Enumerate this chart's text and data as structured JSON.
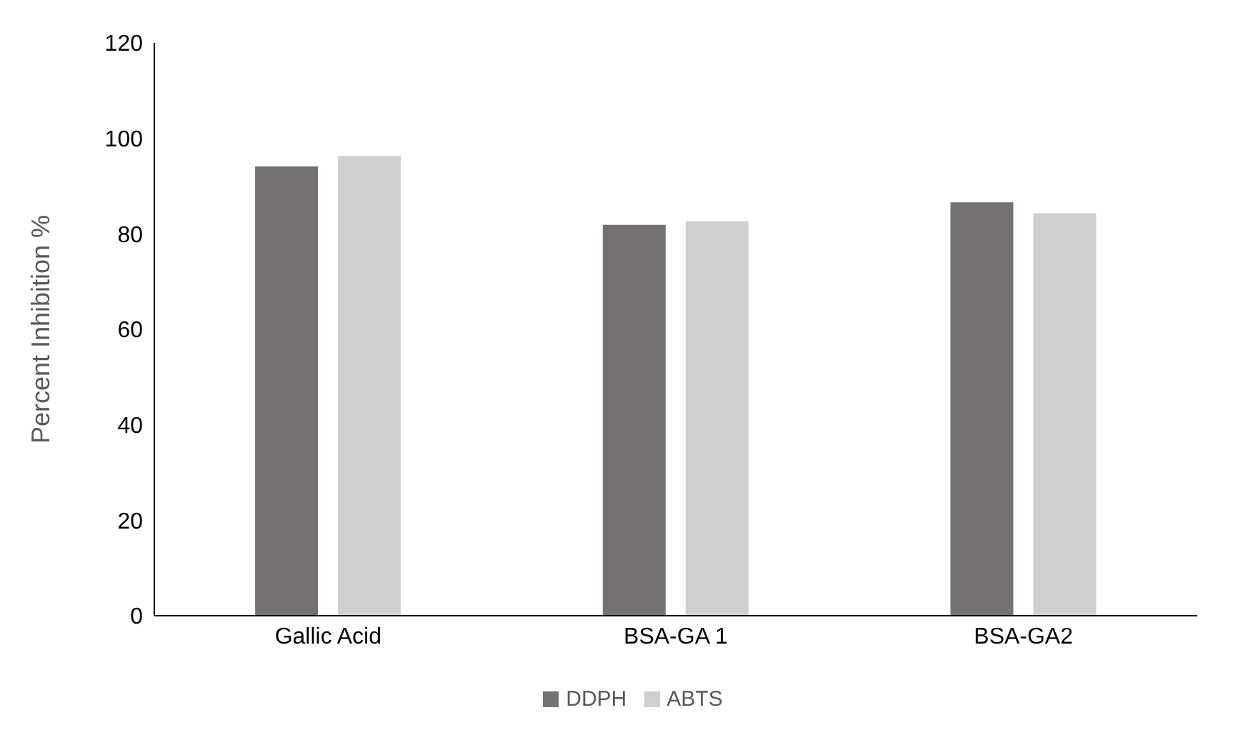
{
  "chart_data": {
    "type": "bar",
    "ylabel": "Percent Inhibition %",
    "categories": [
      "Gallic Acid",
      "BSA-GA 1",
      "BSA-GA2"
    ],
    "series": [
      {
        "name": "DDPH",
        "color": "#757171",
        "values": [
          94.1,
          81.9,
          86.6
        ]
      },
      {
        "name": "ABTS",
        "color": "#d0cece",
        "values": [
          96.3,
          82.6,
          84.3
        ]
      }
    ],
    "ylim": [
      0,
      120
    ],
    "yticks": [
      0,
      20,
      40,
      60,
      80,
      100,
      120
    ],
    "grid": false,
    "legend": "bottom"
  }
}
